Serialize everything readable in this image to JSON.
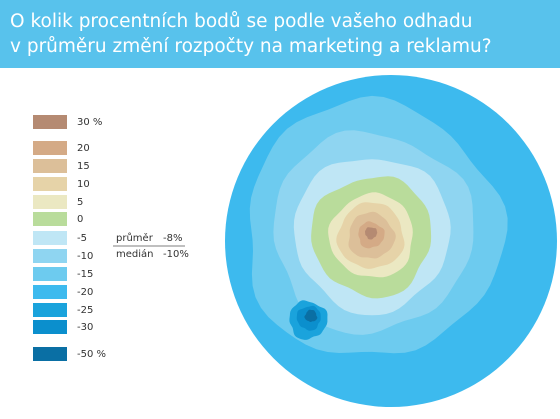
{
  "header": {
    "title_lines": [
      "O kolik procentních bodů se podle vašeho odhadu",
      "v průměru změní rozpočty na marketing a reklamu?"
    ]
  },
  "legend": {
    "items": [
      {
        "label": "30 %",
        "color": "#b58a72"
      },
      {
        "label": "20",
        "color": "#d4aa86"
      },
      {
        "label": "15",
        "color": "#dcbf99"
      },
      {
        "label": "10",
        "color": "#e6d3a8"
      },
      {
        "label": "5",
        "color": "#ebe8c2"
      },
      {
        "label": "0",
        "color": "#b9dc9b"
      },
      {
        "label": "-5",
        "color": "#bfe6f5"
      },
      {
        "label": "-10",
        "color": "#8fd5f1"
      },
      {
        "label": "-15",
        "color": "#6dcbef"
      },
      {
        "label": "-20",
        "color": "#3dbaee"
      },
      {
        "label": "-25",
        "color": "#1aa3dc"
      },
      {
        "label": "-30",
        "color": "#0b8fcd"
      },
      {
        "label": "-50 %",
        "color": "#0a6fa4"
      }
    ]
  },
  "stats": [
    {
      "label": "průměr",
      "value": "-8%"
    },
    {
      "label": "medián",
      "value": "-10%"
    }
  ]
}
